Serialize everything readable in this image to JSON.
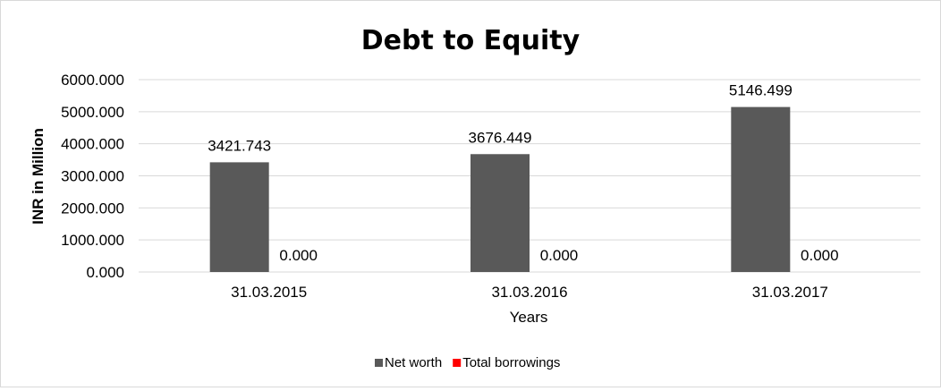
{
  "chart_data": {
    "type": "bar",
    "title": "Debt to Equity",
    "xlabel": "Years",
    "ylabel": "INR in Million",
    "categories": [
      "31.03.2015",
      "31.03.2016",
      "31.03.2017"
    ],
    "series": [
      {
        "name": "Net worth",
        "color": "#595959",
        "values": [
          3421.743,
          3676.449,
          5146.499
        ],
        "labels": [
          "3421.743",
          "3676.449",
          "5146.499"
        ]
      },
      {
        "name": "Total borrowings",
        "color": "#ff0000",
        "values": [
          0,
          0,
          0
        ],
        "labels": [
          "0.000",
          "0.000",
          "0.000"
        ]
      }
    ],
    "ylim": [
      0,
      6000
    ],
    "yticks": [
      "0.000",
      "1000.000",
      "2000.000",
      "3000.000",
      "4000.000",
      "5000.000",
      "6000.000"
    ],
    "grid": true,
    "legend_position": "bottom"
  }
}
